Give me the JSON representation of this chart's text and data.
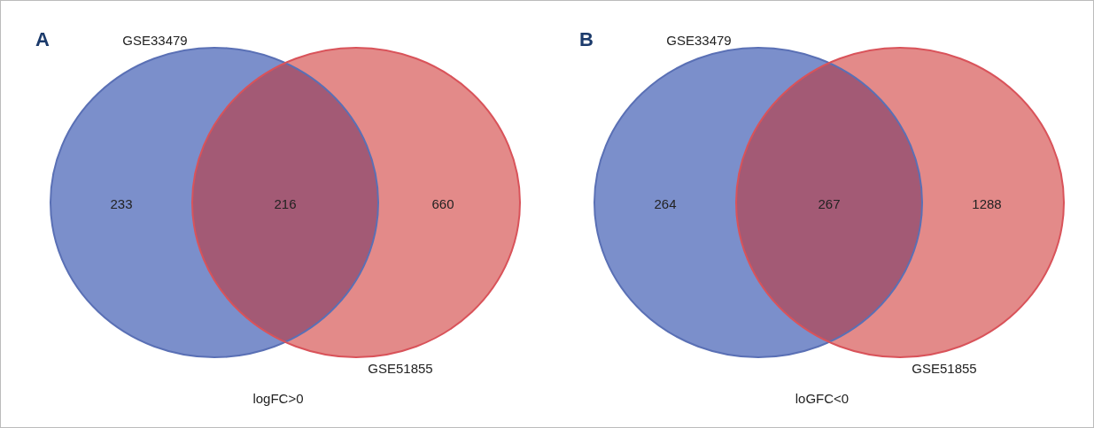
{
  "chart_data": [
    {
      "type": "other",
      "title": "A",
      "xlabel": "logFC>0",
      "annotations": [
        "GSE33479",
        "GSE51855"
      ],
      "categories": [
        null,
        null,
        null
      ],
      "values": [
        233,
        216,
        660
      ],
      "data_labels": true,
      "colors": [
        "#7b8fcb",
        "#a35a75",
        "#e38a89"
      ]
    },
    {
      "type": "other",
      "title": "B",
      "xlabel": "loGFC<0",
      "annotations": [
        "GSE33479",
        "GSE51855"
      ],
      "categories": [
        null,
        null,
        null
      ],
      "values": [
        264,
        267,
        1288
      ],
      "data_labels": true,
      "colors": [
        "#7b8fcb",
        "#a35a75",
        "#e38a89"
      ]
    }
  ]
}
